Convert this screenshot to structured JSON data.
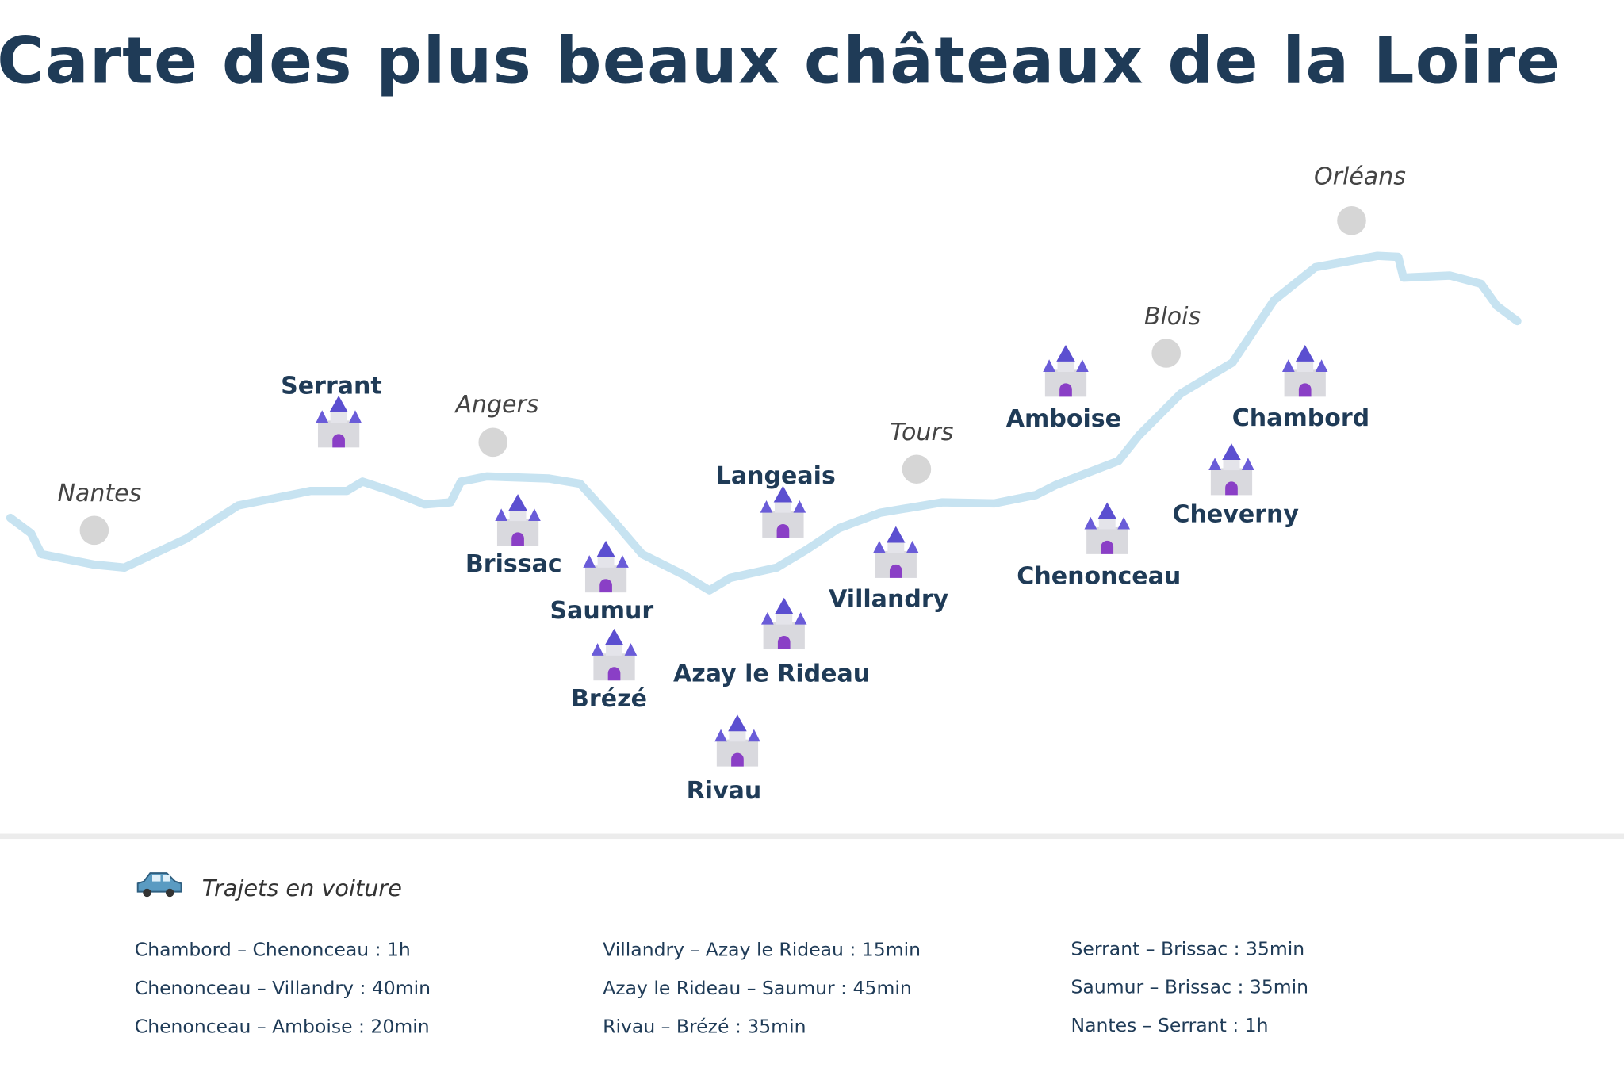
{
  "header": {
    "title": "Carte des plus beaux châteaux de la Loire"
  },
  "cities": [
    "Nantes",
    "Angers",
    "Tours",
    "Blois",
    "Orléans"
  ],
  "chateaux": [
    "Serrant",
    "Brissac",
    "Saumur",
    "Brézé",
    "Langeais",
    "Azay le Rideau",
    "Rivau",
    "Villandry",
    "Amboise",
    "Chenonceau",
    "Cheverny",
    "Chambord"
  ],
  "legend": {
    "title": "Trajets en voiture",
    "routes": [
      "Chambord – Chenonceau : 1h",
      "Chenonceau – Villandry : 40min",
      "Chenonceau – Amboise : 20min",
      "Villandry – Azay le Rideau : 15min",
      "Azay le Rideau – Saumur : 45min",
      "Rivau – Brézé : 35min",
      "Serrant – Brissac : 35min",
      "Saumur – Brissac : 35min",
      "Nantes – Serrant : 1h"
    ]
  }
}
